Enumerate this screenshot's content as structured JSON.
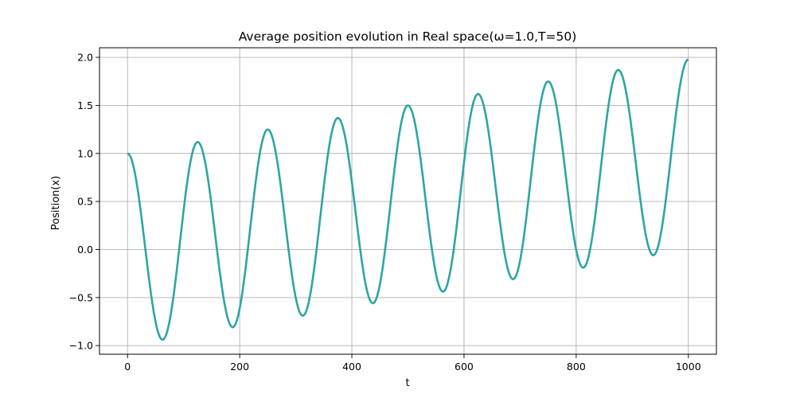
{
  "chart_data": {
    "type": "line",
    "title": "Average position evolution in Real space(ω=1.0,T=50)",
    "xlabel": "t",
    "ylabel": "Position(x)",
    "xlim": [
      -50,
      1050
    ],
    "ylim": [
      -1.09,
      2.1
    ],
    "xticks": [
      0,
      200,
      400,
      600,
      800,
      1000
    ],
    "xtick_labels": [
      "0",
      "200",
      "400",
      "600",
      "800",
      "1000"
    ],
    "yticks": [
      -1.0,
      -0.5,
      0.0,
      0.5,
      1.0,
      1.5,
      2.0
    ],
    "ytick_labels": [
      "−1.0",
      "−0.5",
      "0.0",
      "0.5",
      "1.0",
      "1.5",
      "2.0"
    ],
    "grid": true,
    "legend": "none",
    "series": [
      {
        "color": "#2ca6a4",
        "x": [
          0,
          62.5,
          125,
          187.5,
          250,
          312.5,
          375,
          437.5,
          500,
          562.5,
          625,
          687.5,
          750,
          812.5,
          875,
          937.5,
          1000
        ],
        "y": [
          1.0,
          -0.94,
          1.12,
          -0.81,
          1.25,
          -0.69,
          1.37,
          -0.56,
          1.5,
          -0.44,
          1.62,
          -0.31,
          1.75,
          -0.19,
          1.87,
          -0.06,
          1.98
        ]
      }
    ]
  }
}
